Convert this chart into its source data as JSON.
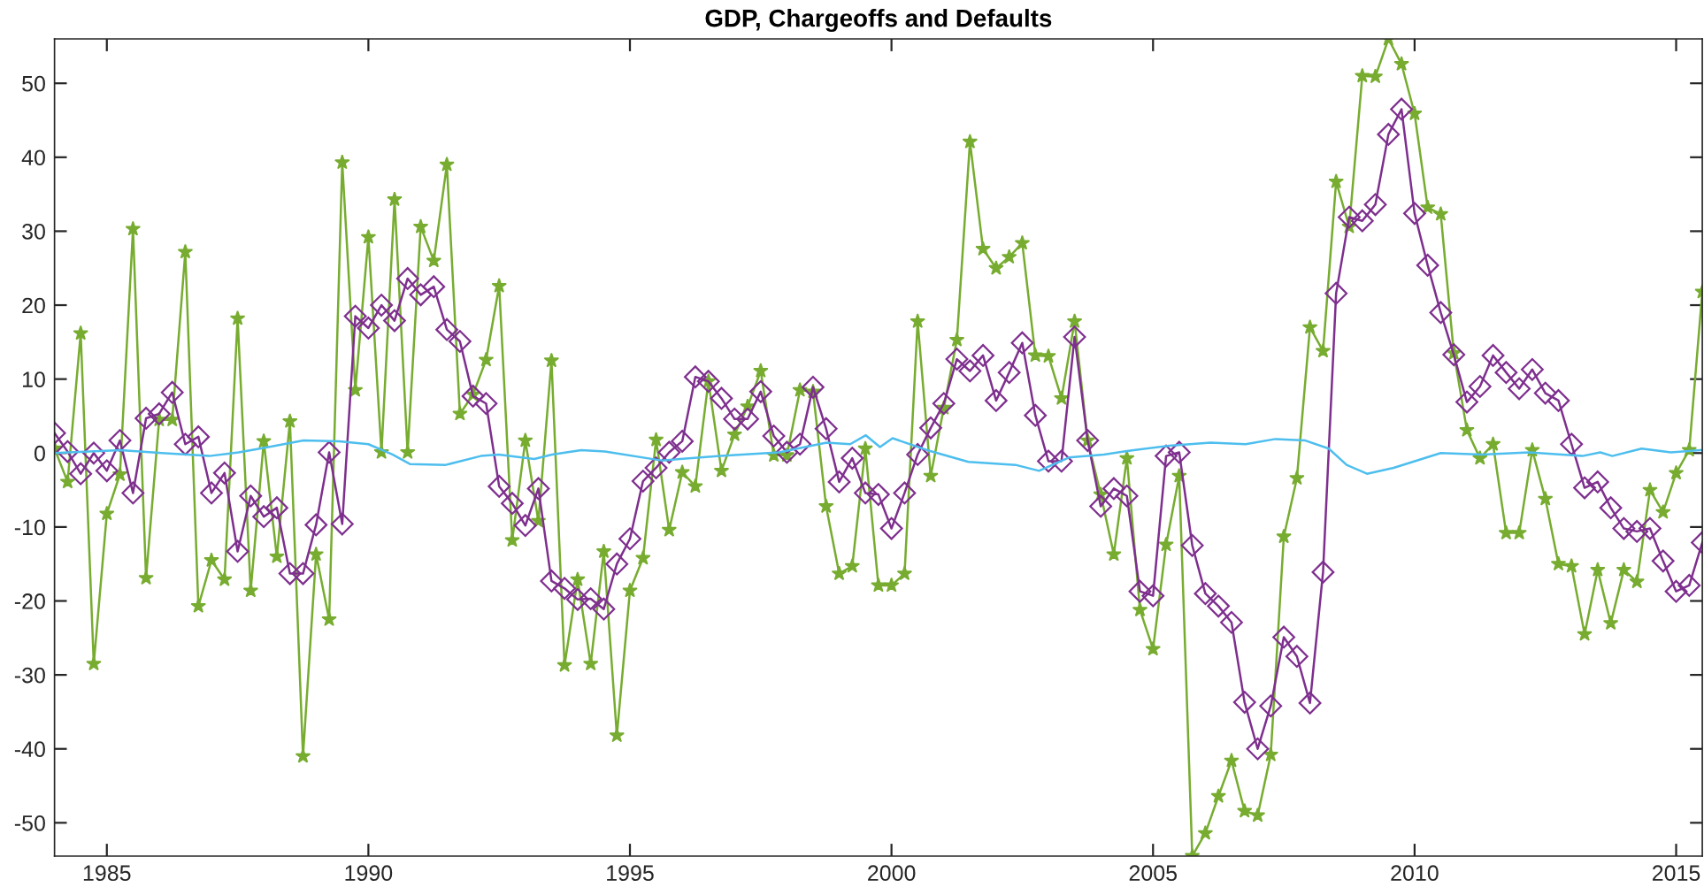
{
  "chart_data": {
    "type": "line",
    "title": "GDP, Chargeoffs and Defaults",
    "x": [
      1984,
      1984.25,
      1984.5,
      1984.75,
      1985,
      1985.25,
      1985.5,
      1985.75,
      1986,
      1986.25,
      1986.5,
      1986.75,
      1987,
      1987.25,
      1987.5,
      1987.75,
      1988,
      1988.25,
      1988.5,
      1988.75,
      1989,
      1989.25,
      1989.5,
      1989.75,
      1990,
      1990.25,
      1990.5,
      1990.75,
      1991,
      1991.25,
      1991.5,
      1991.75,
      1992,
      1992.25,
      1992.5,
      1992.75,
      1993,
      1993.25,
      1993.5,
      1993.75,
      1994,
      1994.25,
      1994.5,
      1994.75,
      1995,
      1995.25,
      1995.5,
      1995.75,
      1996,
      1996.25,
      1996.5,
      1996.75,
      1997,
      1997.25,
      1997.5,
      1997.75,
      1998,
      1998.25,
      1998.5,
      1998.75,
      1999,
      1999.25,
      1999.5,
      1999.75,
      2000,
      2000.25,
      2000.5,
      2000.75,
      2001,
      2001.25,
      2001.5,
      2001.75,
      2002,
      2002.25,
      2002.5,
      2002.75,
      2003,
      2003.25,
      2003.5,
      2003.75,
      2004,
      2004.25,
      2004.5,
      2004.75,
      2005,
      2005.25,
      2005.5,
      2005.75,
      2006,
      2006.25,
      2006.5,
      2006.75,
      2007,
      2007.25,
      2007.5,
      2007.75,
      2008,
      2008.25,
      2008.5,
      2008.75,
      2009,
      2009.25,
      2009.5,
      2009.75,
      2010,
      2010.25,
      2010.5,
      2010.75,
      2011,
      2011.25,
      2011.5,
      2011.75,
      2012,
      2012.25,
      2012.5,
      2012.75,
      2013,
      2013.25,
      2013.5,
      2013.75,
      2014,
      2014.25,
      2014.5,
      2014.75,
      2015,
      2015.25,
      2015.5
    ],
    "series": [
      {
        "color": "#77ac30",
        "marker": "star",
        "values": [
          0.6,
          -3.9,
          16.2,
          -28.5,
          -8.2,
          -2.9,
          30.3,
          -16.9,
          4.5,
          4.5,
          27.2,
          -20.7,
          -14.5,
          -17.1,
          18.2,
          -18.6,
          1.6,
          -14.0,
          4.3,
          -41.0,
          -13.7,
          -22.5,
          39.3,
          8.5,
          29.2,
          0.1,
          34.3,
          0.1,
          30.6,
          26.0,
          39.0,
          5.3,
          7.9,
          12.6,
          22.6,
          -11.8,
          1.7,
          -9.2,
          12.5,
          -28.7,
          -17.1,
          -28.5,
          -13.3,
          -38.2,
          -18.6,
          -14.2,
          1.8,
          -10.4,
          -2.6,
          -4.5,
          9.7,
          -2.4,
          2.5,
          6.3,
          11.1,
          -0.3,
          -0.3,
          8.5,
          8.3,
          -7.2,
          -16.3,
          -15.3,
          0.6,
          -17.9,
          -17.9,
          -16.3,
          17.8,
          -3.1,
          6.1,
          15.3,
          42.1,
          27.6,
          25.0,
          26.5,
          28.4,
          13.2,
          13.1,
          7.4,
          17.8,
          1.7,
          -5.6,
          -13.7,
          -0.7,
          -21.2,
          -26.5,
          -12.4,
          -3.1,
          -54.5,
          -51.4,
          -46.4,
          -41.6,
          -48.4,
          -49.0,
          -40.8,
          -11.3,
          -3.4,
          17.0,
          13.8,
          36.7,
          30.6,
          51.0,
          50.9,
          56.0,
          52.6,
          45.9,
          33.2,
          32.3,
          13.5,
          3.1,
          -0.7,
          1.2,
          -10.8,
          -10.8,
          0.4,
          -6.2,
          -15.0,
          -15.3,
          -24.5,
          -15.8,
          -23.0,
          -15.8,
          -17.4,
          -5.0,
          -8.0,
          -2.7,
          0.4,
          21.8
        ]
      },
      {
        "color": "#7e2f8e",
        "marker": "diamond",
        "values": [
          2.7,
          0.2,
          -2.8,
          0.0,
          -2.4,
          1.7,
          -5.4,
          4.7,
          5.3,
          8.2,
          1.2,
          2.2,
          -5.4,
          -2.7,
          -13.3,
          -5.8,
          -8.6,
          -7.4,
          -16.3,
          -16.3,
          -9.7,
          0.1,
          -9.6,
          18.5,
          16.9,
          20.0,
          17.9,
          23.6,
          21.4,
          22.5,
          16.7,
          15.1,
          7.7,
          6.7,
          -4.5,
          -6.8,
          -9.8,
          -4.8,
          -17.3,
          -18.3,
          -19.8,
          -19.7,
          -21.1,
          -15.0,
          -11.6,
          -3.8,
          -2.0,
          0.1,
          1.6,
          10.3,
          9.7,
          7.4,
          4.6,
          4.6,
          8.3,
          2.3,
          0.1,
          1.2,
          8.9,
          3.3,
          -3.9,
          -0.7,
          -5.4,
          -5.6,
          -10.2,
          -5.4,
          -0.2,
          3.4,
          6.7,
          12.7,
          11.1,
          13.2,
          7.1,
          10.9,
          14.9,
          5.1,
          -1.1,
          -1.1,
          15.7,
          1.7,
          -7.2,
          -4.8,
          -5.8,
          -18.7,
          -19.3,
          -0.4,
          0.1,
          -12.5,
          -19.0,
          -20.7,
          -22.9,
          -33.7,
          -40.0,
          -34.2,
          -24.9,
          -27.5,
          -33.8,
          -16.1,
          21.6,
          31.9,
          31.4,
          33.6,
          43.1,
          46.5,
          32.4,
          25.4,
          19.0,
          13.3,
          6.9,
          9.0,
          13.2,
          10.9,
          8.7,
          11.3,
          8.1,
          7.1,
          1.2,
          -4.7,
          -3.9,
          -7.4,
          -10.2,
          -10.6,
          -10.2,
          -14.6,
          -18.7,
          -17.9,
          -12.1
        ]
      },
      {
        "color": "#4dbeee",
        "marker": "none",
        "x": [
          1984.0,
          1985.26,
          1986.05,
          1986.96,
          1987.52,
          1988.09,
          1988.76,
          1989.44,
          1990.0,
          1990.46,
          1990.8,
          1991.48,
          1992.15,
          1992.49,
          1993.17,
          1993.51,
          1994.07,
          1994.52,
          1995.6,
          1996.73,
          1997.85,
          1998.76,
          1999.21,
          1999.51,
          1999.78,
          2000.02,
          2000.68,
          2001.47,
          2002.37,
          2002.82,
          2003.39,
          2004.06,
          2004.63,
          2005.31,
          2006.1,
          2006.77,
          2007.34,
          2007.91,
          2008.36,
          2008.7,
          2009.09,
          2009.6,
          2010.5,
          2011.29,
          2012.19,
          2013.21,
          2013.55,
          2013.78,
          2014.34,
          2014.9,
          2015.5
        ],
        "values": [
          0.0,
          0.4,
          0.0,
          -0.4,
          0.1,
          0.8,
          1.7,
          1.6,
          1.2,
          -0.2,
          -1.5,
          -1.6,
          -0.4,
          -0.2,
          -0.8,
          -0.2,
          0.4,
          0.2,
          -1.0,
          -0.4,
          0.1,
          1.4,
          1.2,
          2.4,
          0.8,
          2.0,
          0.4,
          -1.2,
          -1.6,
          -2.4,
          -0.6,
          -0.2,
          0.4,
          1.0,
          1.4,
          1.2,
          1.9,
          1.7,
          0.6,
          -1.6,
          -2.8,
          -2.0,
          0.0,
          -0.2,
          0.1,
          -0.4,
          0.1,
          -0.4,
          0.6,
          0.1,
          0.4
        ]
      }
    ],
    "xlim": [
      1984,
      2015.5
    ],
    "ylim": [
      -54.5,
      56
    ],
    "xticks": [
      1985,
      1990,
      1995,
      2000,
      2005,
      2010,
      2015
    ],
    "yticks": [
      -50,
      -40,
      -30,
      -20,
      -10,
      0,
      10,
      20,
      30,
      40,
      50
    ],
    "grid": false,
    "legend": false
  }
}
